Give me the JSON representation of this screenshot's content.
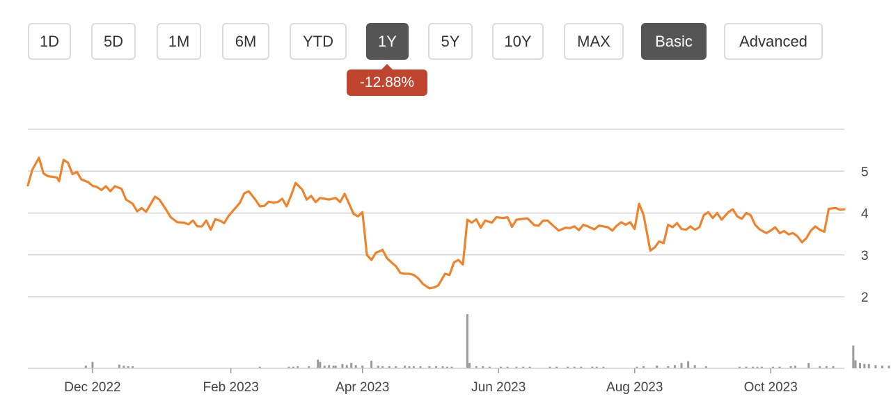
{
  "toolbar": {
    "ranges": [
      "1D",
      "5D",
      "1M",
      "6M",
      "YTD",
      "1Y",
      "5Y",
      "10Y",
      "MAX"
    ],
    "active_range": "1Y",
    "modes": [
      "Basic",
      "Advanced"
    ],
    "active_mode": "Basic"
  },
  "change_badge": {
    "text": "-12.88%",
    "color": "#c0452f"
  },
  "colors": {
    "line": "#f0832a",
    "volume": "#9a9a9a",
    "grid": "#d6d6d6",
    "active_button": "#555555"
  },
  "chart_data": {
    "type": "line",
    "title": "",
    "xlabel": "",
    "ylabel": "",
    "x_tick_labels": [
      "Dec 2022",
      "Feb 2023",
      "Apr 2023",
      "Jun 2023",
      "Aug 2023",
      "Oct 2023"
    ],
    "x_tick_dates": [
      "2022-12-01",
      "2023-02-01",
      "2023-04-01",
      "2023-06-01",
      "2023-08-01",
      "2023-10-01"
    ],
    "y_ticks": [
      2,
      3,
      4,
      5
    ],
    "y_axis_side": "right",
    "ylim": [
      2,
      6
    ],
    "grid": true,
    "series": [
      {
        "values": [
          [
            "2022-11-02",
            4.66
          ],
          [
            "2022-11-04",
            5.03
          ],
          [
            "2022-11-07",
            5.32
          ],
          [
            "2022-11-09",
            4.95
          ],
          [
            "2022-11-11",
            4.88
          ],
          [
            "2022-11-15",
            4.85
          ],
          [
            "2022-11-16",
            4.76
          ],
          [
            "2022-11-18",
            5.27
          ],
          [
            "2022-11-20",
            5.2
          ],
          [
            "2022-11-22",
            4.93
          ],
          [
            "2022-11-24",
            4.98
          ],
          [
            "2022-11-26",
            4.8
          ],
          [
            "2022-11-29",
            4.74
          ],
          [
            "2022-12-01",
            4.65
          ],
          [
            "2022-12-03",
            4.62
          ],
          [
            "2022-12-05",
            4.55
          ],
          [
            "2022-12-07",
            4.64
          ],
          [
            "2022-12-09",
            4.52
          ],
          [
            "2022-12-11",
            4.64
          ],
          [
            "2022-12-14",
            4.58
          ],
          [
            "2022-12-16",
            4.32
          ],
          [
            "2022-12-19",
            4.22
          ],
          [
            "2022-12-21",
            4.04
          ],
          [
            "2022-12-23",
            4.12
          ],
          [
            "2022-12-25",
            4.03
          ],
          [
            "2022-12-27",
            4.21
          ],
          [
            "2022-12-29",
            4.39
          ],
          [
            "2022-12-31",
            4.32
          ],
          [
            "2023-01-03",
            4.08
          ],
          [
            "2023-01-05",
            3.9
          ],
          [
            "2023-01-08",
            3.78
          ],
          [
            "2023-01-11",
            3.77
          ],
          [
            "2023-01-13",
            3.73
          ],
          [
            "2023-01-15",
            3.82
          ],
          [
            "2023-01-17",
            3.68
          ],
          [
            "2023-01-19",
            3.68
          ],
          [
            "2023-01-21",
            3.82
          ],
          [
            "2023-01-23",
            3.6
          ],
          [
            "2023-01-25",
            3.85
          ],
          [
            "2023-01-27",
            3.82
          ],
          [
            "2023-01-29",
            3.76
          ],
          [
            "2023-01-31",
            3.93
          ],
          [
            "2023-02-03",
            4.12
          ],
          [
            "2023-02-05",
            4.24
          ],
          [
            "2023-02-07",
            4.47
          ],
          [
            "2023-02-09",
            4.52
          ],
          [
            "2023-02-12",
            4.32
          ],
          [
            "2023-02-14",
            4.16
          ],
          [
            "2023-02-16",
            4.17
          ],
          [
            "2023-02-18",
            4.27
          ],
          [
            "2023-02-20",
            4.25
          ],
          [
            "2023-02-22",
            4.26
          ],
          [
            "2023-02-24",
            4.34
          ],
          [
            "2023-02-26",
            4.16
          ],
          [
            "2023-02-28",
            4.42
          ],
          [
            "2023-03-02",
            4.72
          ],
          [
            "2023-03-05",
            4.56
          ],
          [
            "2023-03-07",
            4.32
          ],
          [
            "2023-03-09",
            4.41
          ],
          [
            "2023-03-11",
            4.26
          ],
          [
            "2023-03-13",
            4.36
          ],
          [
            "2023-03-15",
            4.34
          ],
          [
            "2023-03-17",
            4.32
          ],
          [
            "2023-03-20",
            4.36
          ],
          [
            "2023-03-22",
            4.26
          ],
          [
            "2023-03-24",
            4.46
          ],
          [
            "2023-03-26",
            4.22
          ],
          [
            "2023-03-28",
            3.98
          ],
          [
            "2023-03-30",
            3.92
          ],
          [
            "2023-04-01",
            4.02
          ],
          [
            "2023-04-03",
            3.0
          ],
          [
            "2023-04-05",
            2.88
          ],
          [
            "2023-04-07",
            3.05
          ],
          [
            "2023-04-10",
            3.12
          ],
          [
            "2023-04-12",
            2.92
          ],
          [
            "2023-04-14",
            2.82
          ],
          [
            "2023-04-16",
            2.73
          ],
          [
            "2023-04-18",
            2.57
          ],
          [
            "2023-04-20",
            2.55
          ],
          [
            "2023-04-22",
            2.55
          ],
          [
            "2023-04-24",
            2.52
          ],
          [
            "2023-04-26",
            2.44
          ],
          [
            "2023-04-28",
            2.31
          ],
          [
            "2023-05-01",
            2.2
          ],
          [
            "2023-05-03",
            2.22
          ],
          [
            "2023-05-05",
            2.27
          ],
          [
            "2023-05-08",
            2.55
          ],
          [
            "2023-05-10",
            2.52
          ],
          [
            "2023-05-12",
            2.82
          ],
          [
            "2023-05-14",
            2.88
          ],
          [
            "2023-05-16",
            2.77
          ],
          [
            "2023-05-18",
            3.84
          ],
          [
            "2023-05-20",
            3.77
          ],
          [
            "2023-05-22",
            3.85
          ],
          [
            "2023-05-24",
            3.65
          ],
          [
            "2023-05-26",
            3.82
          ],
          [
            "2023-05-29",
            3.77
          ],
          [
            "2023-05-31",
            3.9
          ],
          [
            "2023-06-03",
            3.88
          ],
          [
            "2023-06-05",
            3.9
          ],
          [
            "2023-06-07",
            3.67
          ],
          [
            "2023-06-09",
            3.84
          ],
          [
            "2023-06-12",
            3.86
          ],
          [
            "2023-06-14",
            3.87
          ],
          [
            "2023-06-17",
            3.71
          ],
          [
            "2023-06-19",
            3.7
          ],
          [
            "2023-06-21",
            3.82
          ],
          [
            "2023-06-23",
            3.82
          ],
          [
            "2023-06-25",
            3.72
          ],
          [
            "2023-06-28",
            3.58
          ],
          [
            "2023-07-01",
            3.65
          ],
          [
            "2023-07-03",
            3.64
          ],
          [
            "2023-07-05",
            3.68
          ],
          [
            "2023-07-07",
            3.59
          ],
          [
            "2023-07-09",
            3.72
          ],
          [
            "2023-07-11",
            3.68
          ],
          [
            "2023-07-14",
            3.61
          ],
          [
            "2023-07-16",
            3.7
          ],
          [
            "2023-07-18",
            3.68
          ],
          [
            "2023-07-20",
            3.66
          ],
          [
            "2023-07-22",
            3.58
          ],
          [
            "2023-07-24",
            3.7
          ],
          [
            "2023-07-26",
            3.78
          ],
          [
            "2023-07-28",
            3.72
          ],
          [
            "2023-07-30",
            3.78
          ],
          [
            "2023-08-01",
            3.62
          ],
          [
            "2023-08-03",
            4.22
          ],
          [
            "2023-08-05",
            3.95
          ],
          [
            "2023-08-08",
            3.1
          ],
          [
            "2023-08-10",
            3.18
          ],
          [
            "2023-08-12",
            3.32
          ],
          [
            "2023-08-14",
            3.28
          ],
          [
            "2023-08-16",
            3.72
          ],
          [
            "2023-08-18",
            3.66
          ],
          [
            "2023-08-20",
            3.76
          ],
          [
            "2023-08-22",
            3.62
          ],
          [
            "2023-08-24",
            3.6
          ],
          [
            "2023-08-26",
            3.68
          ],
          [
            "2023-08-28",
            3.6
          ],
          [
            "2023-08-30",
            3.66
          ],
          [
            "2023-09-01",
            3.95
          ],
          [
            "2023-09-03",
            4.02
          ],
          [
            "2023-09-05",
            3.88
          ],
          [
            "2023-09-07",
            4.0
          ],
          [
            "2023-09-09",
            3.84
          ],
          [
            "2023-09-12",
            4.02
          ],
          [
            "2023-09-14",
            4.09
          ],
          [
            "2023-09-16",
            3.92
          ],
          [
            "2023-09-18",
            3.86
          ],
          [
            "2023-09-20",
            4.0
          ],
          [
            "2023-09-22",
            3.95
          ],
          [
            "2023-09-24",
            3.72
          ],
          [
            "2023-09-26",
            3.61
          ],
          [
            "2023-09-29",
            3.52
          ],
          [
            "2023-10-01",
            3.58
          ],
          [
            "2023-10-03",
            3.66
          ],
          [
            "2023-10-05",
            3.52
          ],
          [
            "2023-10-07",
            3.57
          ],
          [
            "2023-10-09",
            3.49
          ],
          [
            "2023-10-11",
            3.52
          ],
          [
            "2023-10-13",
            3.44
          ],
          [
            "2023-10-15",
            3.3
          ],
          [
            "2023-10-17",
            3.4
          ],
          [
            "2023-10-19",
            3.58
          ],
          [
            "2023-10-21",
            3.68
          ],
          [
            "2023-10-23",
            3.6
          ],
          [
            "2023-10-25",
            3.55
          ],
          [
            "2023-10-27",
            4.1
          ],
          [
            "2023-10-30",
            4.12
          ],
          [
            "2023-11-01",
            4.08
          ],
          [
            "2023-11-03",
            4.09
          ]
        ]
      }
    ],
    "volume": {
      "type": "bar",
      "values": [
        [
          "2022-11-28",
          0.05
        ],
        [
          "2022-12-01",
          0.12
        ],
        [
          "2022-12-13",
          0.07
        ],
        [
          "2022-12-15",
          0.05
        ],
        [
          "2022-12-17",
          0.04
        ],
        [
          "2022-12-19",
          0.04
        ],
        [
          "2023-02-14",
          0.03
        ],
        [
          "2023-02-27",
          0.03
        ],
        [
          "2023-03-01",
          0.03
        ],
        [
          "2023-03-03",
          0.04
        ],
        [
          "2023-03-08",
          0.04
        ],
        [
          "2023-03-12",
          0.16
        ],
        [
          "2023-03-13",
          0.12
        ],
        [
          "2023-03-15",
          0.05
        ],
        [
          "2023-03-17",
          0.06
        ],
        [
          "2023-03-19",
          0.05
        ],
        [
          "2023-03-20",
          0.05
        ],
        [
          "2023-03-23",
          0.08
        ],
        [
          "2023-03-25",
          0.06
        ],
        [
          "2023-03-27",
          0.1
        ],
        [
          "2023-03-29",
          0.06
        ],
        [
          "2023-04-01",
          0.05
        ],
        [
          "2023-04-05",
          0.14
        ],
        [
          "2023-04-08",
          0.05
        ],
        [
          "2023-04-10",
          0.04
        ],
        [
          "2023-04-13",
          0.04
        ],
        [
          "2023-04-16",
          0.04
        ],
        [
          "2023-04-20",
          0.05
        ],
        [
          "2023-04-22",
          0.04
        ],
        [
          "2023-04-24",
          0.04
        ],
        [
          "2023-04-27",
          0.04
        ],
        [
          "2023-05-01",
          0.04
        ],
        [
          "2023-05-04",
          0.04
        ],
        [
          "2023-05-07",
          0.04
        ],
        [
          "2023-05-09",
          0.03
        ],
        [
          "2023-05-11",
          0.03
        ],
        [
          "2023-05-18",
          1.0
        ],
        [
          "2023-05-19",
          0.1
        ],
        [
          "2023-05-22",
          0.04
        ],
        [
          "2023-05-25",
          0.04
        ],
        [
          "2023-05-28",
          0.03
        ],
        [
          "2023-06-02",
          0.03
        ],
        [
          "2023-06-05",
          0.03
        ],
        [
          "2023-06-09",
          0.03
        ],
        [
          "2023-06-12",
          0.03
        ],
        [
          "2023-06-15",
          0.03
        ],
        [
          "2023-06-24",
          0.03
        ],
        [
          "2023-06-27",
          0.03
        ],
        [
          "2023-07-02",
          0.03
        ],
        [
          "2023-07-05",
          0.03
        ],
        [
          "2023-07-08",
          0.03
        ],
        [
          "2023-07-13",
          0.03
        ],
        [
          "2023-07-15",
          0.03
        ],
        [
          "2023-07-18",
          0.03
        ],
        [
          "2023-08-02",
          0.03
        ],
        [
          "2023-08-05",
          0.04
        ],
        [
          "2023-08-11",
          0.05
        ],
        [
          "2023-08-16",
          0.04
        ],
        [
          "2023-08-19",
          0.06
        ],
        [
          "2023-08-22",
          0.1
        ],
        [
          "2023-08-25",
          0.13
        ],
        [
          "2023-08-28",
          0.06
        ],
        [
          "2023-09-02",
          0.04
        ],
        [
          "2023-09-17",
          0.03
        ],
        [
          "2023-09-20",
          0.03
        ],
        [
          "2023-09-23",
          0.03
        ],
        [
          "2023-09-25",
          0.03
        ],
        [
          "2023-09-27",
          0.03
        ],
        [
          "2023-10-02",
          0.03
        ],
        [
          "2023-10-05",
          0.03
        ],
        [
          "2023-10-10",
          0.04
        ],
        [
          "2023-10-12",
          0.05
        ],
        [
          "2023-10-18",
          0.1
        ],
        [
          "2023-10-23",
          0.04
        ],
        [
          "2023-10-26",
          0.04
        ],
        [
          "2023-10-29",
          0.04
        ],
        [
          "2023-11-07",
          0.42
        ],
        [
          "2023-11-08",
          0.15
        ],
        [
          "2023-11-10",
          0.1
        ],
        [
          "2023-11-12",
          0.08
        ],
        [
          "2023-11-14",
          0.08
        ],
        [
          "2023-11-17",
          0.06
        ],
        [
          "2023-11-20",
          0.05
        ],
        [
          "2023-11-23",
          0.05
        ],
        [
          "2023-11-26",
          0.04
        ],
        [
          "2023-11-28",
          0.04
        ]
      ]
    }
  }
}
